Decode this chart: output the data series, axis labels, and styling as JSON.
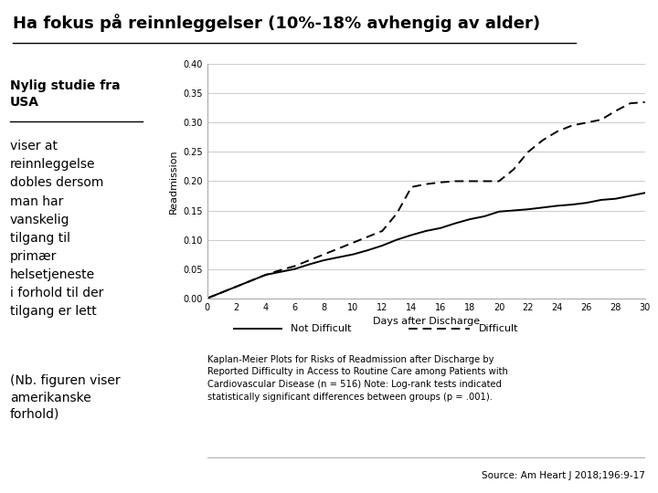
{
  "title": "Ha fokus på reinnleggelser (10%-18% avhengig av alder)",
  "background_color": "#ffffff",
  "title_fontsize": 13,
  "title_fontweight": "bold",
  "left_text_bold_underline": "Nylig studie fra\nUSA",
  "left_text_normal": "viser at\nreinnleggelse\ndobles dersom\nman har\nvanskelig\ntilgang til\nprimær\nhelsetjeneste\ni forhold til der\ntilgang er lett",
  "left_text_bottom": "(Nb. figuren viser\namerikanske\nforhold)",
  "not_difficult_x": [
    0,
    1,
    2,
    3,
    4,
    5,
    6,
    7,
    8,
    9,
    10,
    11,
    12,
    13,
    14,
    15,
    16,
    17,
    18,
    19,
    20,
    21,
    22,
    23,
    24,
    25,
    26,
    27,
    28,
    29,
    30
  ],
  "not_difficult_y": [
    0.0,
    0.01,
    0.02,
    0.03,
    0.04,
    0.045,
    0.05,
    0.058,
    0.065,
    0.07,
    0.075,
    0.082,
    0.09,
    0.1,
    0.108,
    0.115,
    0.12,
    0.128,
    0.135,
    0.14,
    0.148,
    0.15,
    0.152,
    0.155,
    0.158,
    0.16,
    0.163,
    0.168,
    0.17,
    0.175,
    0.18
  ],
  "difficult_x": [
    0,
    1,
    2,
    3,
    4,
    5,
    6,
    7,
    8,
    9,
    10,
    11,
    12,
    13,
    14,
    15,
    16,
    17,
    18,
    19,
    20,
    21,
    22,
    23,
    24,
    25,
    26,
    27,
    28,
    29,
    30
  ],
  "difficult_y": [
    0.0,
    0.01,
    0.02,
    0.03,
    0.04,
    0.048,
    0.055,
    0.065,
    0.075,
    0.085,
    0.095,
    0.105,
    0.115,
    0.145,
    0.19,
    0.195,
    0.198,
    0.2,
    0.2,
    0.2,
    0.2,
    0.22,
    0.25,
    0.27,
    0.285,
    0.295,
    0.3,
    0.305,
    0.32,
    0.333,
    0.335
  ],
  "xlabel": "Days after Discharge",
  "ylabel": "Readmission",
  "xlim": [
    0,
    30
  ],
  "ylim": [
    0.0,
    0.4
  ],
  "yticks": [
    0.0,
    0.05,
    0.1,
    0.15,
    0.2,
    0.25,
    0.3,
    0.35,
    0.4
  ],
  "xticks": [
    0,
    2,
    4,
    6,
    8,
    10,
    12,
    14,
    16,
    18,
    20,
    22,
    24,
    26,
    28,
    30
  ],
  "legend_not_difficult": "Not Difficult",
  "legend_difficult": "Difficult",
  "caption": "Kaplan-Meier Plots for Risks of Readmission after Discharge by\nReported Difficulty in Access to Routine Care among Patients with\nCardiovascular Disease (n = 516) Note: Log-rank tests indicated\nstatistically significant differences between groups (p = .001).",
  "source": "Source: Am Heart J 2018;196:9-17",
  "line_color": "#000000",
  "grid_color": "#cccccc"
}
